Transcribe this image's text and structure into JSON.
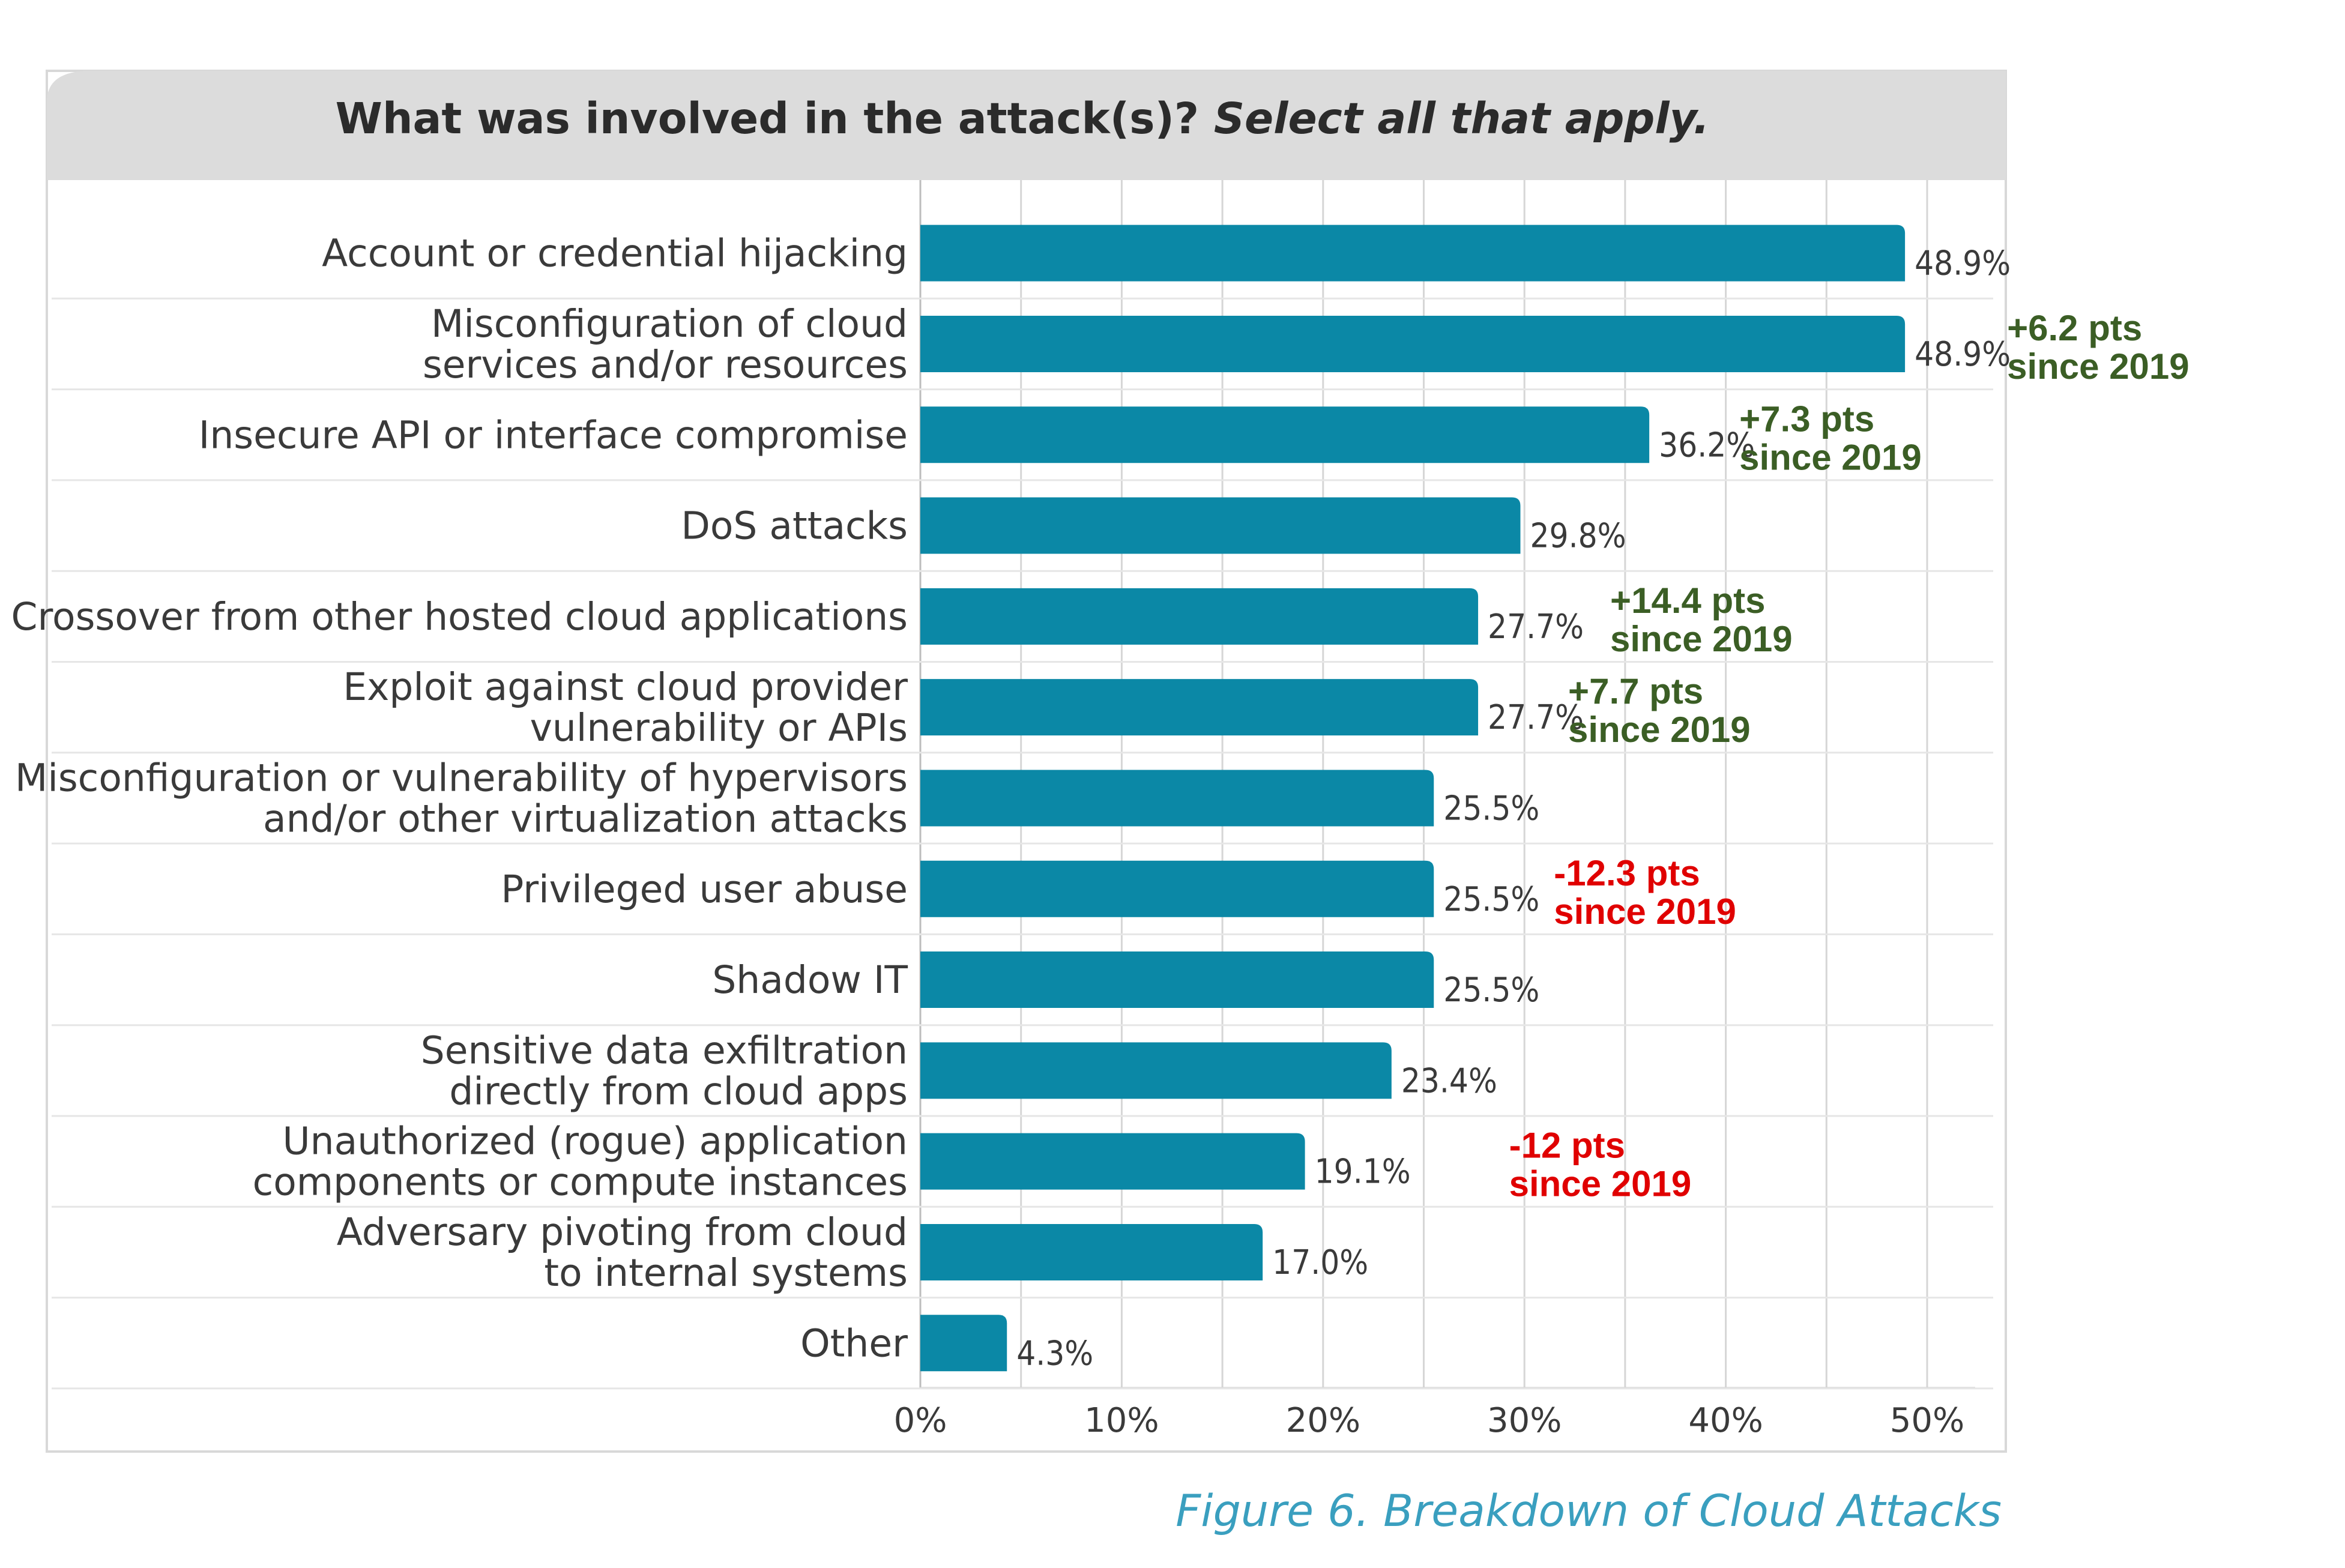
{
  "chart_data": {
    "type": "bar",
    "orientation": "horizontal",
    "title": "What was involved in the attack(s)?",
    "subtitle": "Select all that apply.",
    "caption": "Figure 6. Breakdown of Cloud Attacks",
    "categories": [
      [
        "Account or credential hijacking"
      ],
      [
        "Misconfiguration of cloud",
        "services and/or resources"
      ],
      [
        "Insecure API or interface compromise"
      ],
      [
        "DoS attacks"
      ],
      [
        "Crossover from other hosted cloud applications"
      ],
      [
        "Exploit against cloud provider",
        "vulnerability or APIs"
      ],
      [
        "Misconfiguration or vulnerability of hypervisors",
        "and/or other virtualization attacks"
      ],
      [
        "Privileged user abuse"
      ],
      [
        "Shadow IT"
      ],
      [
        "Sensitive data exfiltration",
        "directly from cloud apps"
      ],
      [
        "Unauthorized (rogue) application",
        "components or compute instances"
      ],
      [
        "Adversary pivoting from cloud",
        "to internal systems"
      ],
      [
        "Other"
      ]
    ],
    "values": [
      48.9,
      48.9,
      36.2,
      29.8,
      27.7,
      27.7,
      25.5,
      25.5,
      25.5,
      23.4,
      19.1,
      17.0,
      4.3
    ],
    "value_labels": [
      "48.9%",
      "48.9%",
      "36.2%",
      "29.8%",
      "27.7%",
      "27.7%",
      "25.5%",
      "25.5%",
      "25.5%",
      "23.4%",
      "19.1%",
      "17.0%",
      "4.3%"
    ],
    "xlim": [
      0,
      50
    ],
    "xticks": [
      "0%",
      "10%",
      "20%",
      "30%",
      "40%",
      "50%"
    ],
    "grid": "vertical",
    "bar_color": "#0b88a6",
    "annotations": [
      {
        "row": 1,
        "lines": [
          "+6.2 pts",
          "since 2019"
        ],
        "color": "#3b5e25"
      },
      {
        "row": 2,
        "lines": [
          "+7.3 pts",
          "since 2019"
        ],
        "color": "#3b5e25"
      },
      {
        "row": 4,
        "lines": [
          "+14.4 pts",
          "since 2019"
        ],
        "color": "#3b5e25"
      },
      {
        "row": 5,
        "lines": [
          "+7.7 pts",
          "since 2019"
        ],
        "color": "#3b5e25"
      },
      {
        "row": 7,
        "lines": [
          "-12.3 pts",
          "since 2019"
        ],
        "color": "#e00000"
      },
      {
        "row": 10,
        "lines": [
          "-12 pts",
          "since 2019"
        ],
        "color": "#e00000"
      }
    ]
  }
}
